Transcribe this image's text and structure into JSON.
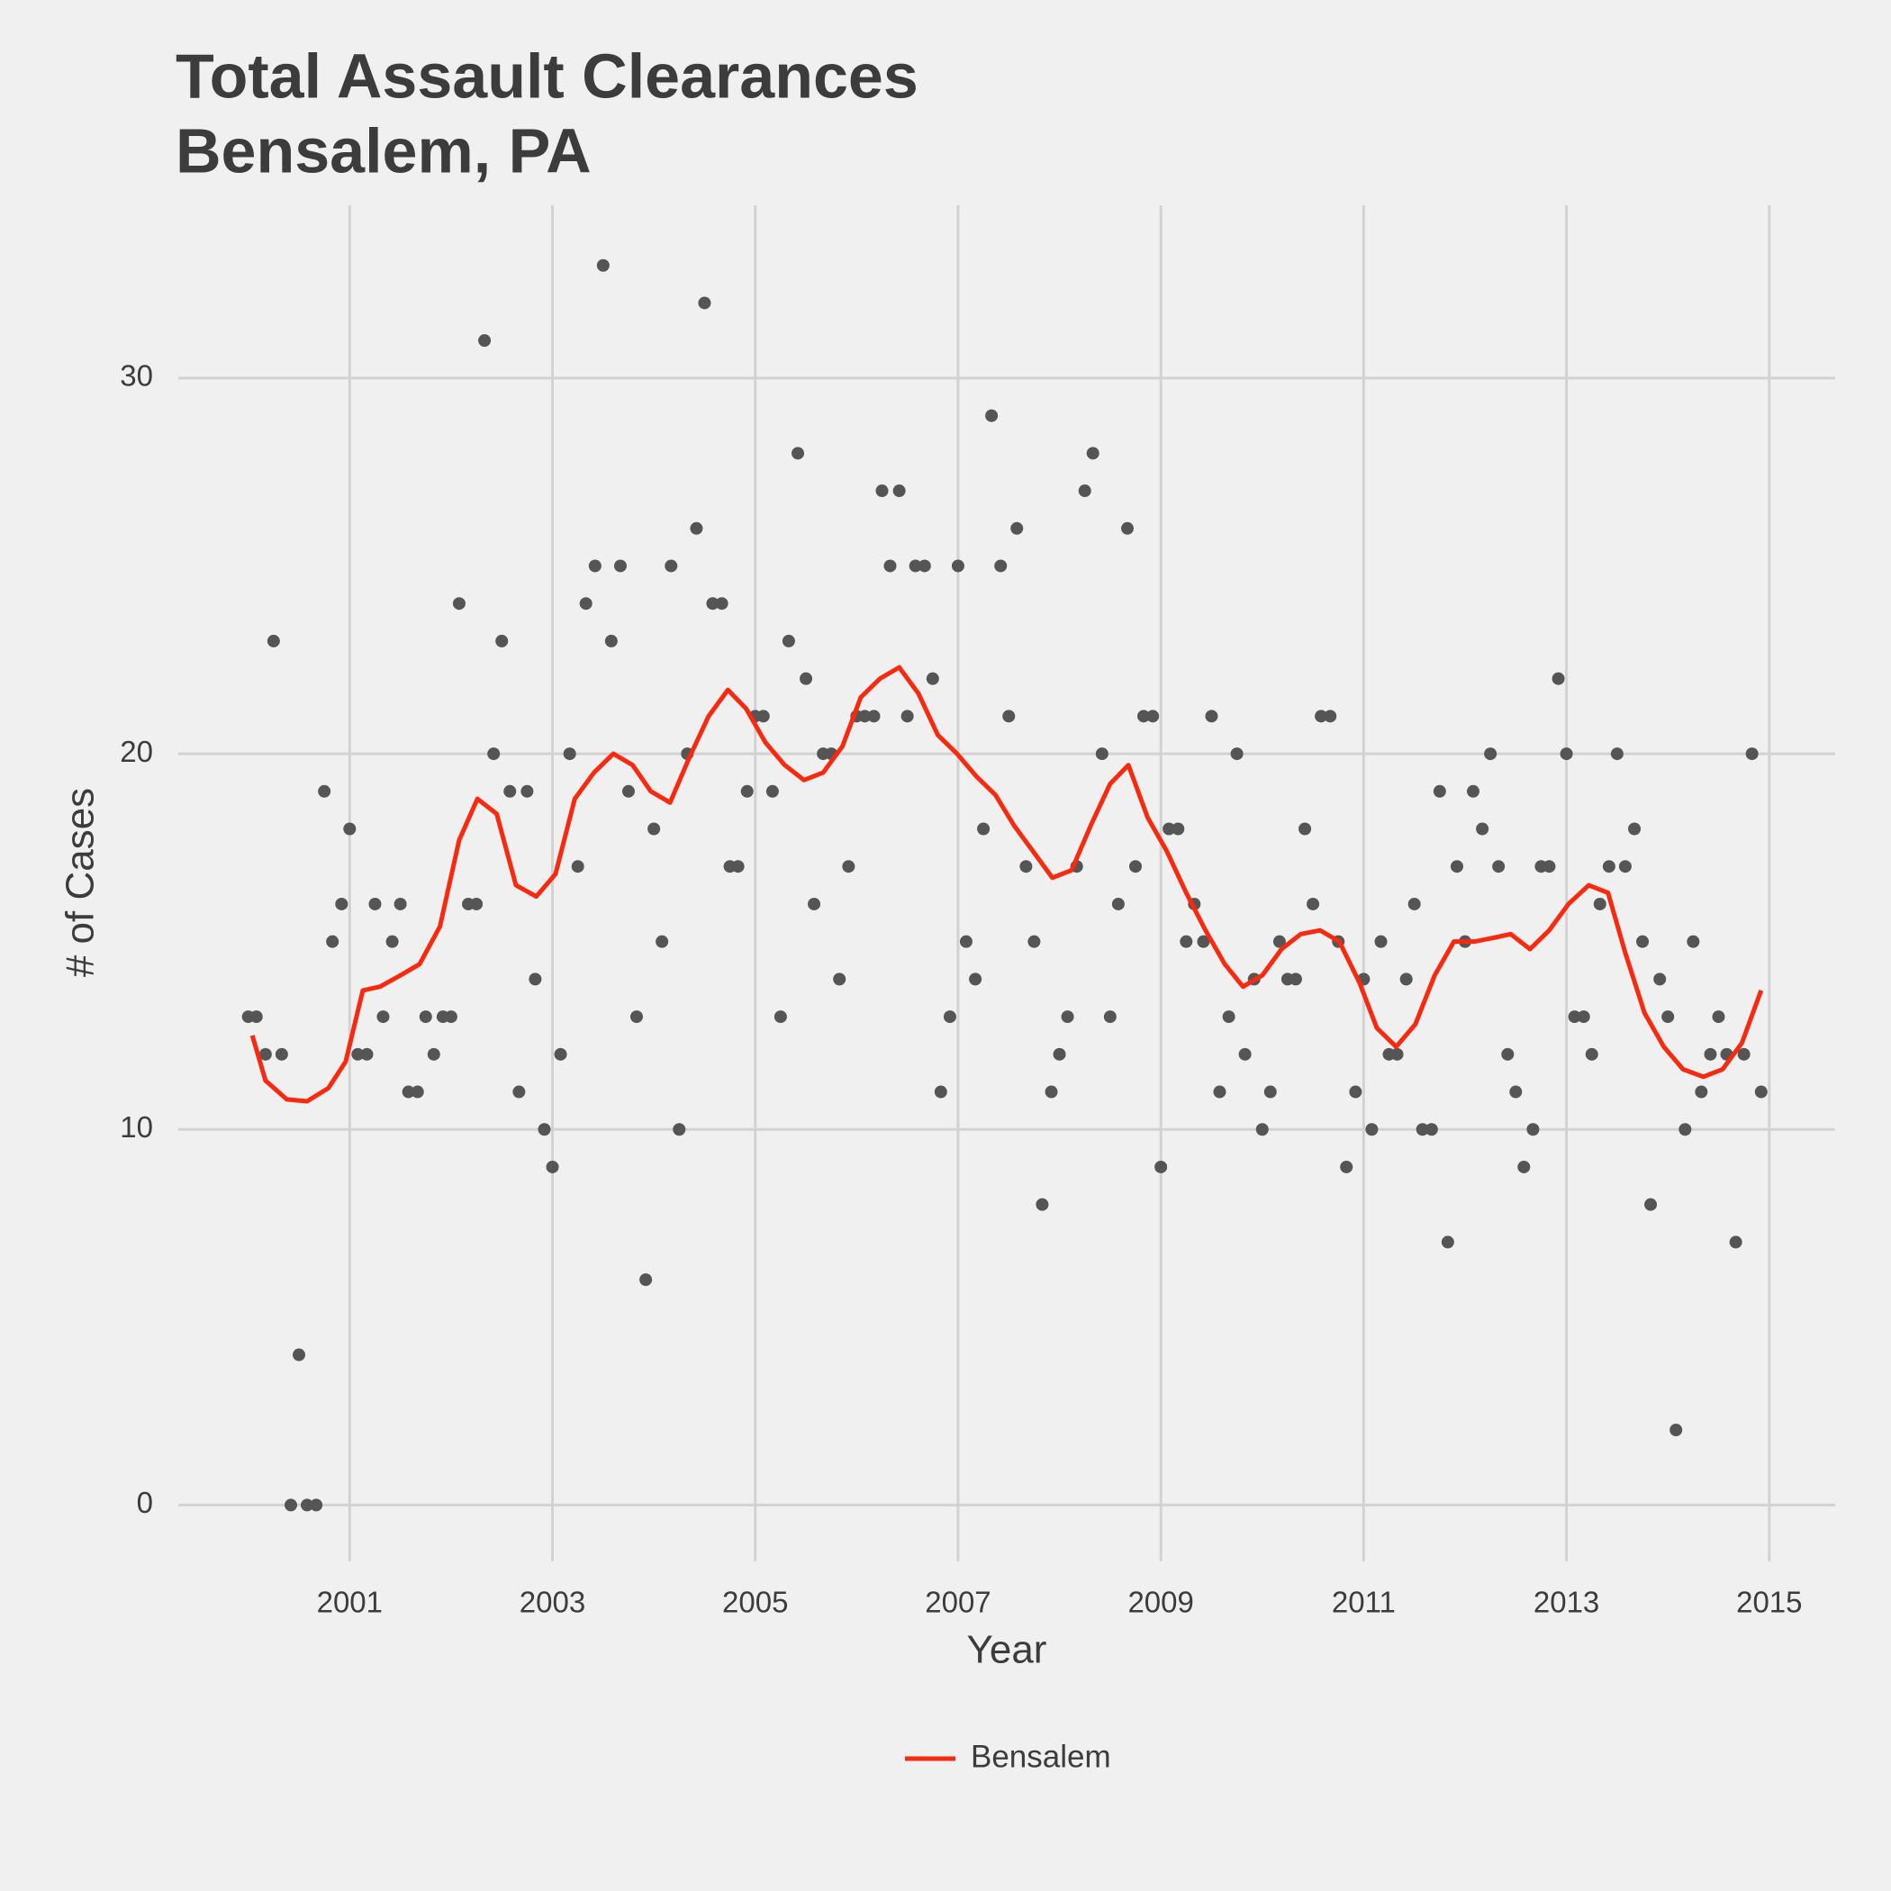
{
  "chart_data": {
    "type": "line",
    "title": "Total Assault Clearances",
    "subtitle": "Bensalem, PA",
    "x_label": "Year",
    "y_label": "# of Cases",
    "xlim": [
      1999.31,
      2015.65
    ],
    "ylim": [
      -1.5,
      34.6
    ],
    "xticks": [
      2001,
      2003,
      2005,
      2007,
      2009,
      2011,
      2013,
      2015
    ],
    "yticks": [
      0,
      10,
      20,
      30
    ],
    "grid": true,
    "legend": "bottom",
    "series": [
      {
        "type": "scatter",
        "color": "#555555",
        "x": [
          2000.0,
          2000.08,
          2000.17,
          2000.25,
          2000.33,
          2000.42,
          2000.5,
          2000.58,
          2000.67,
          2000.75,
          2000.83,
          2000.92,
          2001.0,
          2001.08,
          2001.17,
          2001.25,
          2001.33,
          2001.42,
          2001.5,
          2001.58,
          2001.67,
          2001.75,
          2001.83,
          2001.92,
          2002.0,
          2002.08,
          2002.17,
          2002.25,
          2002.33,
          2002.42,
          2002.5,
          2002.58,
          2002.67,
          2002.75,
          2002.83,
          2002.92,
          2003.0,
          2003.08,
          2003.17,
          2003.25,
          2003.33,
          2003.42,
          2003.5,
          2003.58,
          2003.67,
          2003.75,
          2003.83,
          2003.92,
          2004.0,
          2004.08,
          2004.17,
          2004.25,
          2004.33,
          2004.42,
          2004.5,
          2004.58,
          2004.67,
          2004.75,
          2004.83,
          2004.92,
          2005.0,
          2005.08,
          2005.17,
          2005.25,
          2005.33,
          2005.42,
          2005.5,
          2005.58,
          2005.67,
          2005.75,
          2005.83,
          2005.92,
          2006.0,
          2006.08,
          2006.17,
          2006.25,
          2006.33,
          2006.42,
          2006.5,
          2006.58,
          2006.67,
          2006.75,
          2006.83,
          2006.92,
          2007.0,
          2007.08,
          2007.17,
          2007.25,
          2007.33,
          2007.42,
          2007.5,
          2007.58,
          2007.67,
          2007.75,
          2007.83,
          2007.92,
          2008.0,
          2008.08,
          2008.17,
          2008.25,
          2008.33,
          2008.42,
          2008.5,
          2008.58,
          2008.67,
          2008.75,
          2008.83,
          2008.92,
          2009.0,
          2009.08,
          2009.17,
          2009.25,
          2009.33,
          2009.42,
          2009.5,
          2009.58,
          2009.67,
          2009.75,
          2009.83,
          2009.92,
          2010.0,
          2010.08,
          2010.17,
          2010.25,
          2010.33,
          2010.42,
          2010.5,
          2010.58,
          2010.67,
          2010.75,
          2010.83,
          2010.92,
          2011.0,
          2011.08,
          2011.17,
          2011.25,
          2011.33,
          2011.42,
          2011.5,
          2011.58,
          2011.67,
          2011.75,
          2011.83,
          2011.92,
          2012.0,
          2012.08,
          2012.17,
          2012.25,
          2012.33,
          2012.42,
          2012.5,
          2012.58,
          2012.67,
          2012.75,
          2012.83,
          2012.92,
          2013.0,
          2013.08,
          2013.17,
          2013.25,
          2013.33,
          2013.42,
          2013.5,
          2013.58,
          2013.67,
          2013.75,
          2013.83,
          2013.92,
          2014.0,
          2014.08,
          2014.17,
          2014.25,
          2014.33,
          2014.42,
          2014.5,
          2014.58,
          2014.67,
          2014.75,
          2014.83,
          2014.92
        ],
        "values": [
          13,
          13,
          12,
          23,
          12,
          0,
          4,
          0,
          0,
          19,
          15,
          16,
          18,
          12,
          12,
          16,
          13,
          15,
          16,
          11,
          11,
          13,
          12,
          13,
          13,
          24,
          16,
          16,
          31,
          20,
          23,
          19,
          11,
          19,
          14,
          10,
          9,
          12,
          20,
          17,
          24,
          25,
          33,
          23,
          25,
          19,
          13,
          6,
          18,
          15,
          25,
          10,
          20,
          26,
          32,
          24,
          24,
          17,
          17,
          19,
          21,
          21,
          19,
          13,
          23,
          28,
          22,
          16,
          20,
          20,
          14,
          17,
          21,
          21,
          21,
          27,
          25,
          27,
          21,
          25,
          25,
          22,
          11,
          13,
          25,
          15,
          14,
          18,
          29,
          25,
          21,
          26,
          17,
          15,
          8,
          11,
          12,
          13,
          17,
          27,
          28,
          20,
          13,
          16,
          26,
          17,
          21,
          21,
          9,
          18,
          18,
          15,
          16,
          15,
          21,
          11,
          13,
          20,
          12,
          14,
          10,
          11,
          15,
          14,
          14,
          18,
          16,
          21,
          21,
          15,
          9,
          11,
          14,
          10,
          15,
          12,
          12,
          14,
          16,
          10,
          10,
          19,
          7,
          17,
          15,
          19,
          18,
          20,
          17,
          12,
          11,
          9,
          10,
          17,
          17,
          22,
          20,
          13,
          13,
          12,
          16,
          17,
          20,
          17,
          18,
          15,
          8,
          14,
          13,
          2,
          10,
          15,
          11,
          12,
          13,
          12,
          7,
          12,
          20,
          11
        ]
      },
      {
        "type": "line",
        "name": "Bensalem",
        "color": "#f72a0f",
        "x": [
          2000.04,
          2000.17,
          2000.38,
          2000.58,
          2000.79,
          2000.96,
          2001.13,
          2001.3,
          2001.5,
          2001.69,
          2001.89,
          2002.08,
          2002.26,
          2002.45,
          2002.64,
          2002.84,
          2003.03,
          2003.22,
          2003.41,
          2003.6,
          2003.79,
          2003.97,
          2004.16,
          2004.35,
          2004.54,
          2004.73,
          2004.91,
          2005.1,
          2005.29,
          2005.48,
          2005.67,
          2005.86,
          2006.04,
          2006.23,
          2006.42,
          2006.61,
          2006.8,
          2006.99,
          2007.18,
          2007.37,
          2007.55,
          2007.74,
          2007.93,
          2008.12,
          2008.31,
          2008.5,
          2008.68,
          2008.87,
          2009.06,
          2009.25,
          2009.44,
          2009.63,
          2009.81,
          2010.0,
          2010.19,
          2010.38,
          2010.57,
          2010.76,
          2010.96,
          2011.13,
          2011.32,
          2011.51,
          2011.7,
          2011.89,
          2012.09,
          2012.28,
          2012.45,
          2012.64,
          2012.83,
          2013.02,
          2013.22,
          2013.41,
          2013.58,
          2013.77,
          2013.96,
          2014.15,
          2014.35,
          2014.54,
          2014.73,
          2014.92
        ],
        "values": [
          12.5,
          11.3,
          10.8,
          10.75,
          11.1,
          11.8,
          13.7,
          13.8,
          14.1,
          14.4,
          15.4,
          17.7,
          18.8,
          18.4,
          16.5,
          16.2,
          16.8,
          18.8,
          19.5,
          20,
          19.7,
          19,
          18.7,
          19.9,
          21,
          21.7,
          21.2,
          20.3,
          19.7,
          19.3,
          19.5,
          20.2,
          21.5,
          22,
          22.3,
          21.6,
          20.5,
          20,
          19.4,
          18.9,
          18.1,
          17.4,
          16.7,
          16.9,
          18.1,
          19.2,
          19.7,
          18.3,
          17.4,
          16.3,
          15.3,
          14.4,
          13.8,
          14.1,
          14.8,
          15.2,
          15.3,
          15,
          13.9,
          12.7,
          12.2,
          12.8,
          14.1,
          15,
          15,
          15.1,
          15.2,
          14.8,
          15.3,
          16,
          16.5,
          16.3,
          14.7,
          13.1,
          12.2,
          11.6,
          11.4,
          11.6,
          12.3,
          13.7
        ]
      }
    ]
  }
}
